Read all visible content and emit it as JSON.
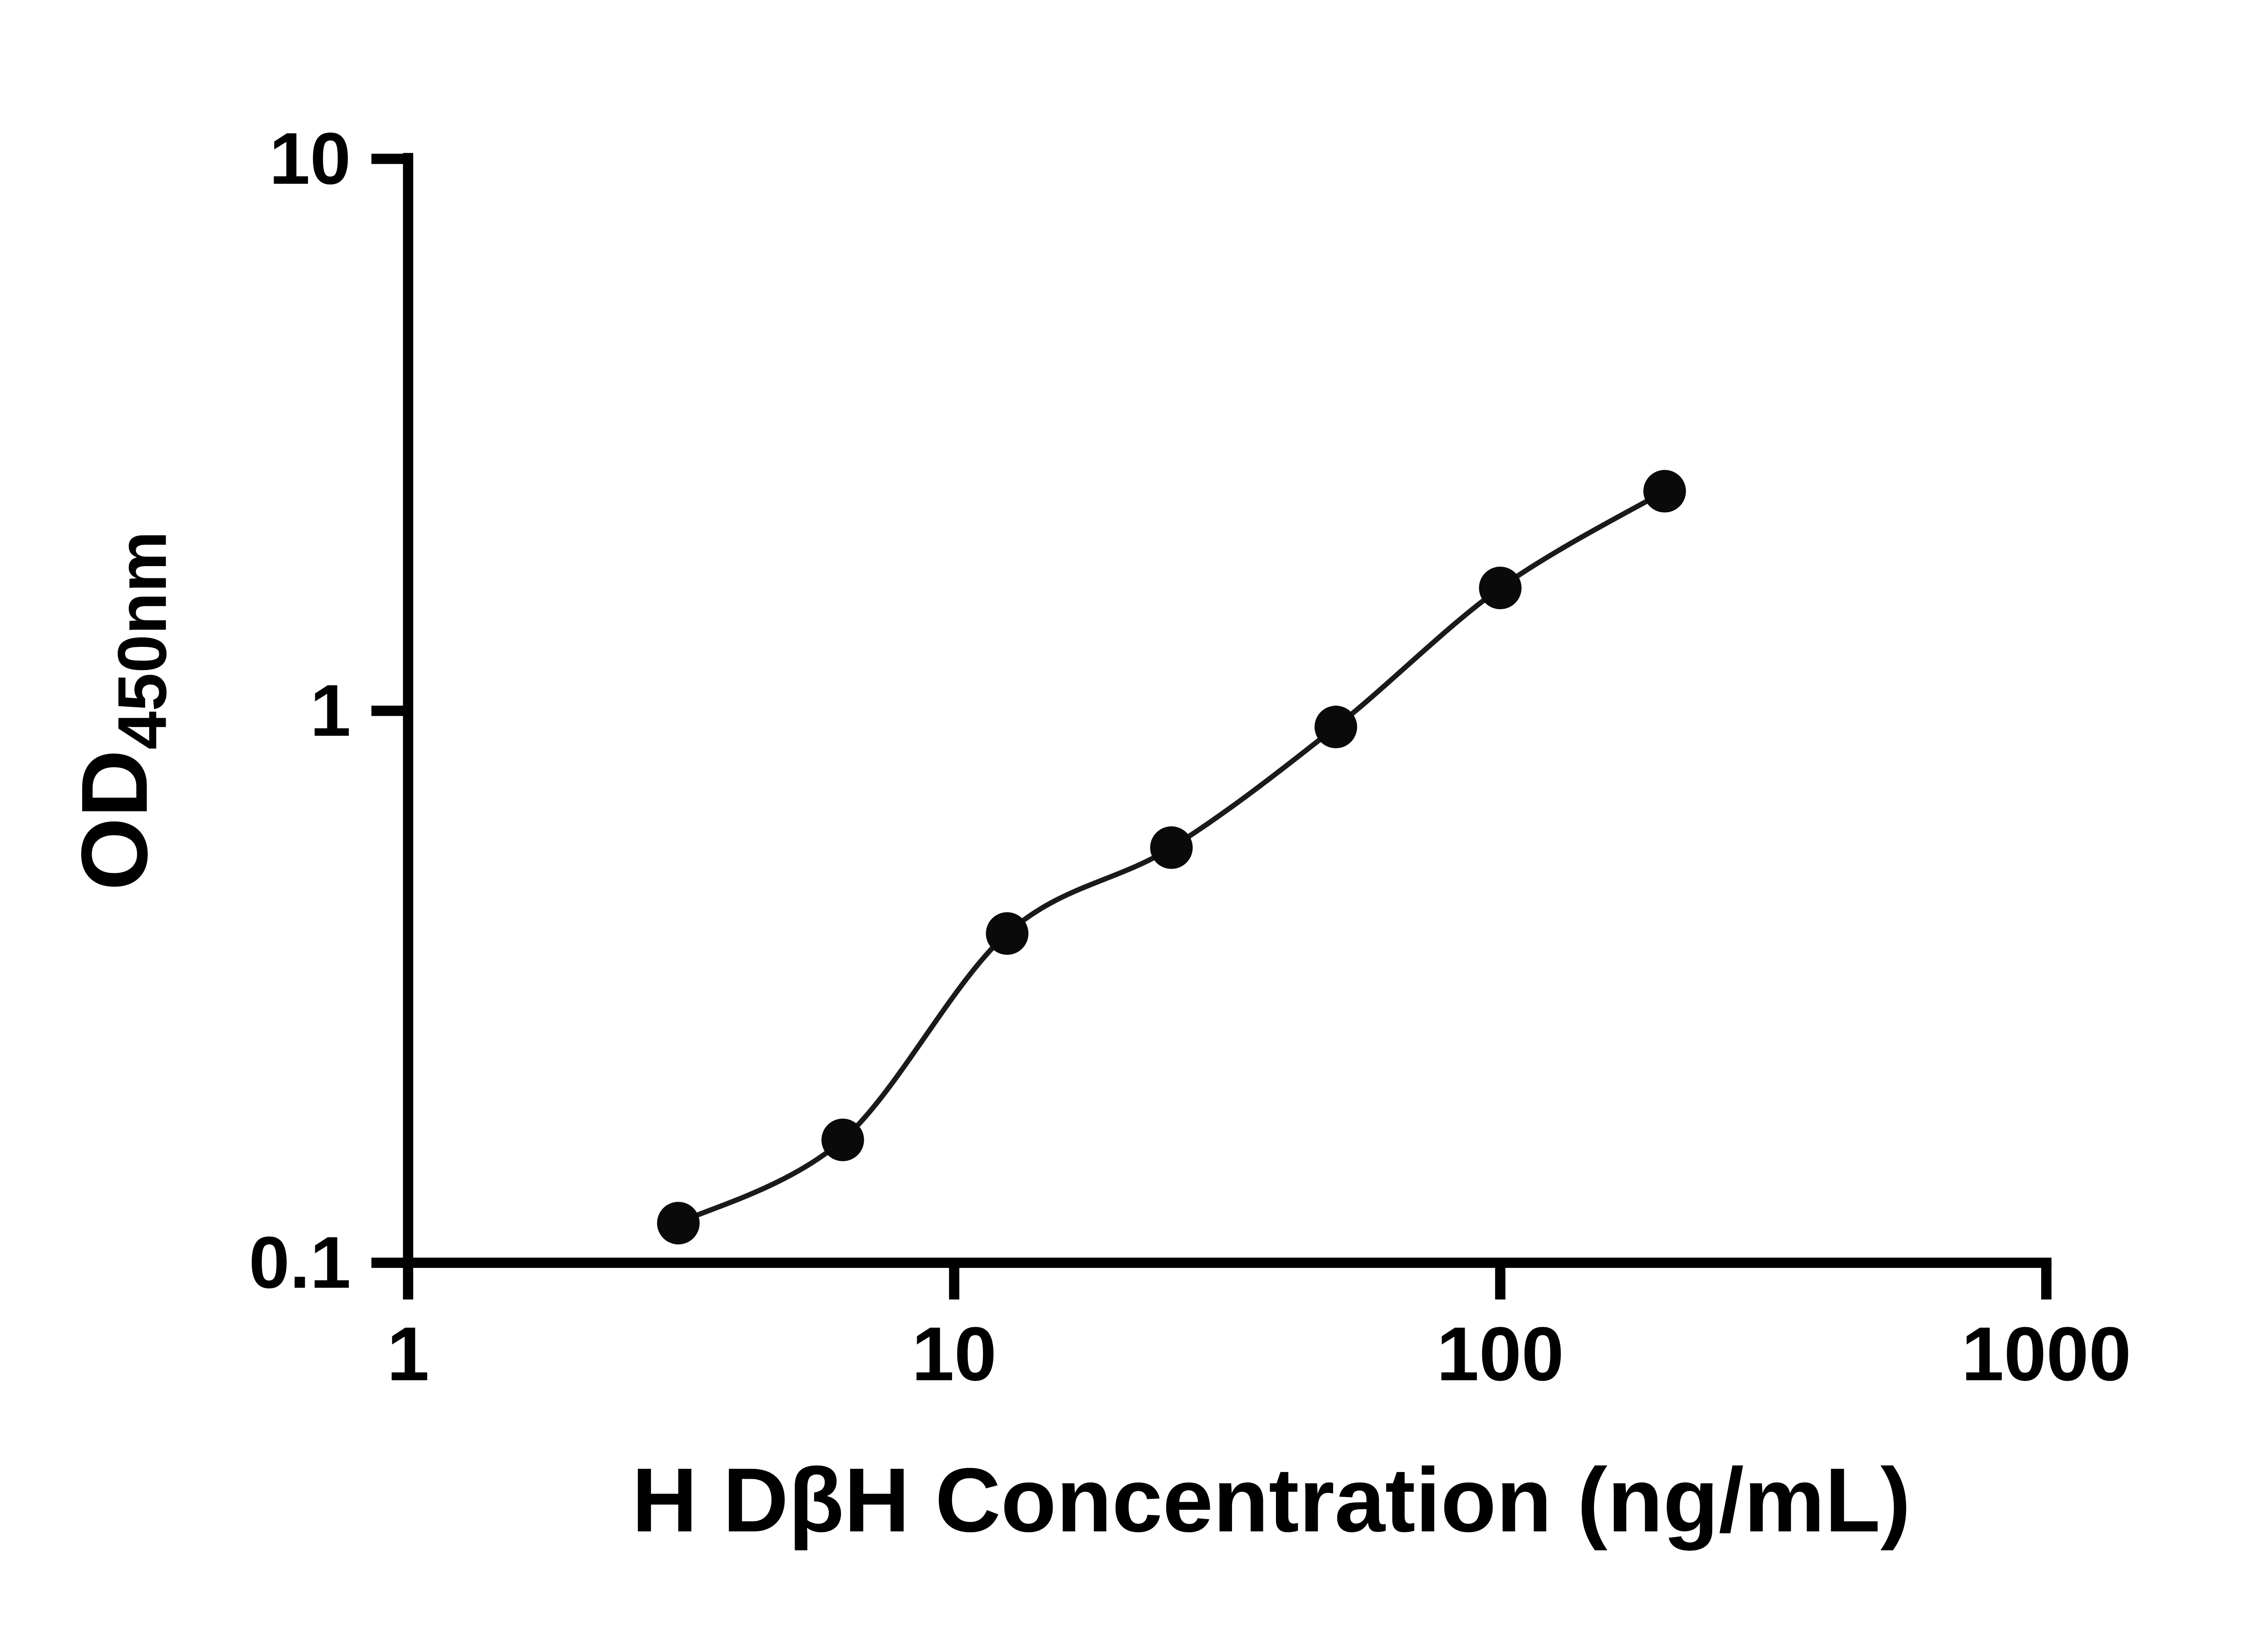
{
  "chart_data": {
    "type": "scatter",
    "title": "",
    "xlabel": "H DβH Concentration (ng/mL)",
    "ylabel_main": "OD",
    "ylabel_sub": "450nm",
    "x_scale": "log",
    "y_scale": "log",
    "xlim": [
      1,
      1000
    ],
    "ylim": [
      0.1,
      10
    ],
    "x_tick_values": [
      1,
      10,
      100,
      1000
    ],
    "x_tick_labels": [
      "1",
      "10",
      "100",
      "1000"
    ],
    "y_tick_values": [
      10,
      1,
      0.1
    ],
    "y_tick_labels": [
      "10",
      "1",
      "0.1"
    ],
    "grid": false,
    "legend": false,
    "fit_curve": true,
    "x": [
      3.125,
      6.25,
      12.5,
      25,
      50,
      100,
      200
    ],
    "y": [
      0.118,
      0.167,
      0.395,
      0.565,
      0.935,
      1.67,
      2.5
    ],
    "marker": "circle"
  },
  "colors": {
    "axis": "#000000",
    "marker": "#0a0a0a",
    "curve": "#1a1a1a",
    "background": "#ffffff"
  }
}
